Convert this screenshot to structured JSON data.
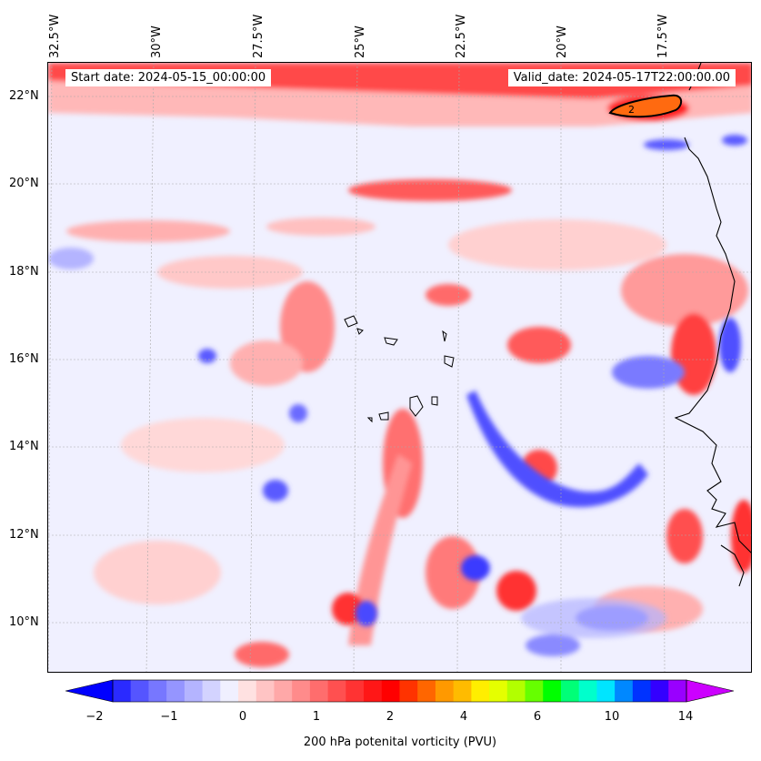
{
  "header": {
    "start_text": "Start date: 2024-05-15_00:00:00",
    "valid_text": "Valid_date: 2024-05-17T22:00:00.00"
  },
  "axes": {
    "lon_labels": [
      "32.5°W",
      "30°W",
      "27.5°W",
      "25°W",
      "22.5°W",
      "20°W",
      "17.5°W"
    ],
    "lat_labels": [
      "22°N",
      "20°N",
      "18°N",
      "16°N",
      "14°N",
      "12°N",
      "10°N"
    ],
    "lon_range": [
      -32.7,
      -15.3
    ],
    "lat_range": [
      8.9,
      22.8
    ]
  },
  "contour_label": "2",
  "colorbar": {
    "label": "200 hPa potenital vorticity (PVU)",
    "tick_labels": [
      "−2",
      "−1",
      "0",
      "1",
      "2",
      "4",
      "6",
      "10",
      "14"
    ],
    "colors": [
      "#0000ff",
      "#2a2aff",
      "#5555ff",
      "#7777ff",
      "#9595ff",
      "#b4b4ff",
      "#d3d3ff",
      "#f0f0ff",
      "#ffe1e1",
      "#ffc4c4",
      "#ffa8a8",
      "#ff8b8b",
      "#ff6d6d",
      "#ff5050",
      "#ff3333",
      "#ff1717",
      "#ff0000",
      "#ff3300",
      "#ff6600",
      "#ff9900",
      "#ffbb00",
      "#ffee00",
      "#e5ff00",
      "#b2ff00",
      "#66ff00",
      "#00ff00",
      "#00ff77",
      "#00ffcc",
      "#00e5ff",
      "#0088ff",
      "#0033ff",
      "#3300ff",
      "#9900ff",
      "#cc00ff"
    ],
    "extend": "both"
  },
  "colors": {
    "background": "#f0f0ff",
    "pv_light": "#ffd6d6",
    "pv_mid": "#ff9a9a",
    "pv_strong": "#ff3030",
    "pv_negative": "#5a5aff",
    "contour": "#000000",
    "coast": "#000000"
  }
}
